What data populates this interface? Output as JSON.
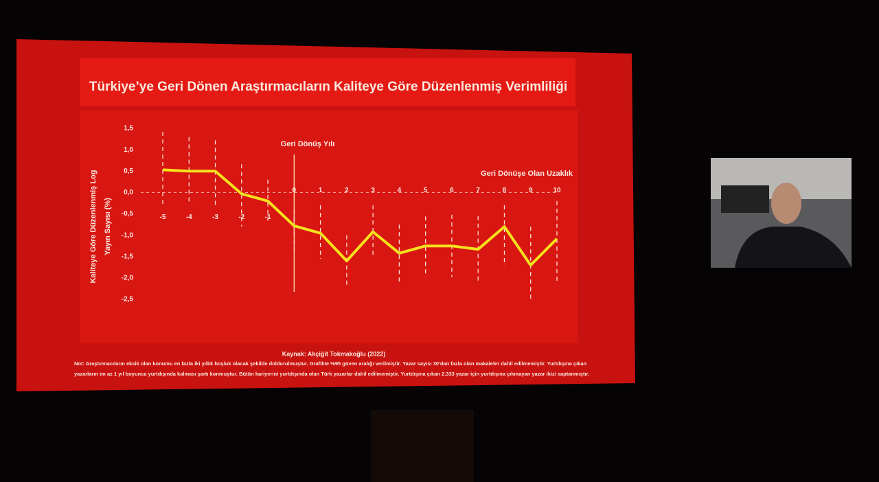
{
  "chart_data": {
    "type": "line",
    "title": "Türkiye’ye Geri Dönen Araştırmacıların Kaliteye Göre Düzenlenmiş Verimliliği",
    "ylabel": [
      "Kaliteye Göre Düzenlenmiş Log",
      "Yayın Sayısı (%)"
    ],
    "annotations": [
      "Geri Dönüş Yılı",
      "Geri Dönüşe Olan Uzaklık"
    ],
    "source": "Kaynak: Akçiğit Tokmakoğlu (2022)",
    "note": [
      "Not: Araştırmacıların eksik olan konumu en fazla iki yıllık boşluk olacak şekilde doldurulmuştur. Grafikte %95 güven aralığı verilmiştir. Yazar sayısı 30'dan fazla olan makaleler dahil edilmemiştir. Yurtdışına çıkan",
      "yazarların en az 1 yıl boyunca yurtdışında kalması şartı konmuştur. Bütün kariyerini yurtdışında olan Türk yazarlar dahil edilmemiştir. Yurtdışına çıkan 2.333 yazar için yurtdışına çıkmayan yazar ikizi saptanmıştır."
    ],
    "x": [
      -5,
      -4,
      -3,
      -2,
      -1,
      0,
      1,
      2,
      3,
      4,
      5,
      6,
      7,
      8,
      9,
      10
    ],
    "xlim": [
      -5,
      10
    ],
    "series": [
      {
        "color": "#f5e11c",
        "values": [
          0.53,
          0.5,
          0.5,
          -0.03,
          -0.2,
          -0.78,
          -0.95,
          -1.6,
          -0.92,
          -1.42,
          -1.25,
          -1.25,
          -1.33,
          -0.8,
          -1.7,
          -1.08
        ],
        "upper": [
          1.42,
          1.3,
          1.22,
          0.66,
          0.3,
          -0.4,
          -0.3,
          -1.0,
          -0.3,
          -0.75,
          -0.56,
          -0.52,
          -0.55,
          -0.3,
          -0.8,
          -0.2
        ],
        "lower": [
          -0.3,
          -0.25,
          -0.3,
          -0.8,
          -0.66,
          -1.35,
          -1.55,
          -2.2,
          -1.52,
          -2.13,
          -1.98,
          -1.98,
          -2.1,
          -1.72,
          -2.56,
          -2.1
        ]
      }
    ],
    "ylim": [
      -2.5,
      1.5
    ],
    "yticks": [
      {
        "value": 1.5,
        "label": "1,5"
      },
      {
        "value": 1,
        "label": "1,0"
      },
      {
        "value": 0.5,
        "label": "0,5"
      },
      {
        "value": 0,
        "label": "0,0"
      },
      {
        "value": -0.5,
        "label": "-0,5"
      },
      {
        "value": -1,
        "label": "-1,0"
      },
      {
        "value": -1.5,
        "label": "-1,5"
      },
      {
        "value": -2,
        "label": "-2,0"
      },
      {
        "value": -2.5,
        "label": "-2,5"
      }
    ]
  }
}
